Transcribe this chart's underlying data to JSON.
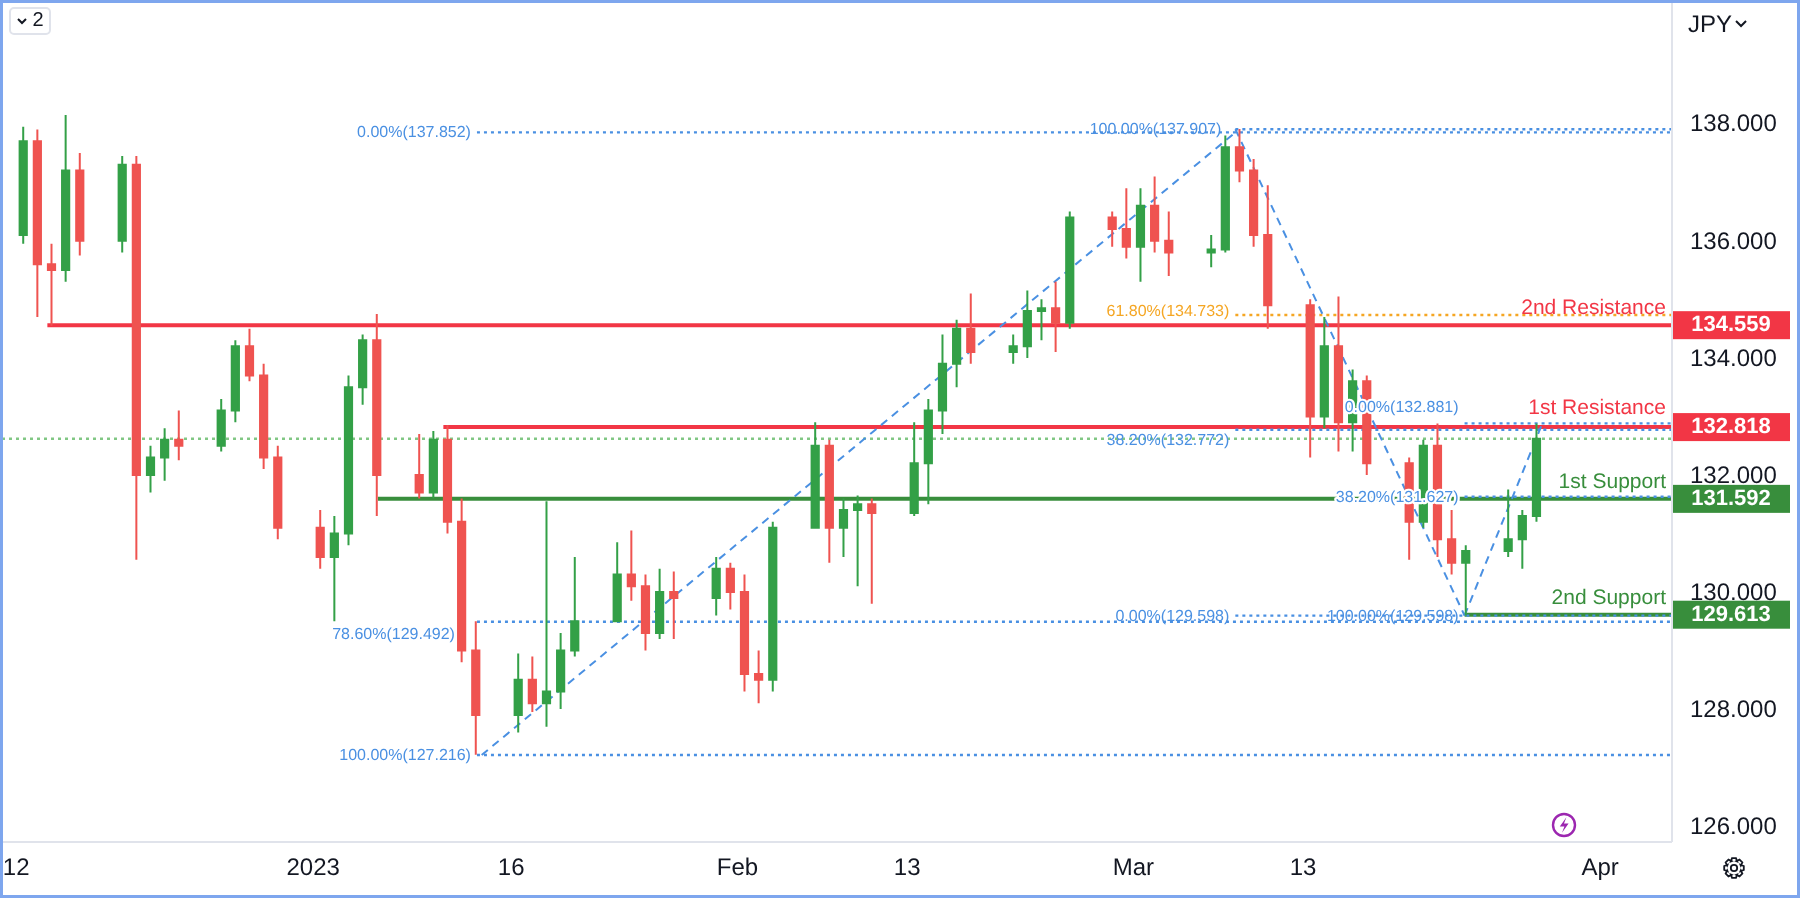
{
  "chart_data": {
    "type": "candlestick",
    "ylabel": "JPY",
    "x": [
      "2022-12-12T12:00",
      "2022-12-13T12:00",
      "2022-12-14T12:00",
      "2022-12-15T12:00",
      "2022-12-16T12:00",
      "2022-12-19T12:00",
      "2022-12-20T12:00",
      "2022-12-21T12:00",
      "2022-12-22T12:00",
      "2022-12-23T12:00",
      "2022-12-26T12:00",
      "2022-12-27T12:00",
      "2022-12-28T12:00",
      "2022-12-29T12:00",
      "2022-12-30T12:00",
      "2023-01-02T12:00",
      "2023-01-03T12:00",
      "2023-01-04T12:00",
      "2023-01-05T12:00",
      "2023-01-06T12:00",
      "2023-01-09T12:00",
      "2023-01-10T12:00",
      "2023-01-11T12:00",
      "2023-01-12T12:00",
      "2023-01-13T12:00",
      "2023-01-16T12:00",
      "2023-01-17T12:00",
      "2023-01-18T12:00",
      "2023-01-19T12:00",
      "2023-01-20T12:00",
      "2023-01-23T12:00",
      "2023-01-24T12:00",
      "2023-01-25T12:00",
      "2023-01-26T12:00",
      "2023-01-27T12:00",
      "2023-01-30T12:00",
      "2023-01-31T12:00",
      "2023-02-01T12:00",
      "2023-02-02T12:00",
      "2023-02-03T12:00",
      "2023-02-06T12:00",
      "2023-02-07T12:00",
      "2023-02-08T12:00",
      "2023-02-09T12:00",
      "2023-02-10T12:00",
      "2023-02-13T12:00",
      "2023-02-14T12:00",
      "2023-02-15T12:00",
      "2023-02-16T12:00",
      "2023-02-17T12:00",
      "2023-02-20T12:00",
      "2023-02-21T12:00",
      "2023-02-22T12:00",
      "2023-02-23T12:00",
      "2023-02-24T12:00",
      "2023-02-27T12:00",
      "2023-02-28T12:00",
      "2023-03-01T12:00",
      "2023-03-02T12:00",
      "2023-03-03T12:00",
      "2023-03-06T12:00",
      "2023-03-07T12:00",
      "2023-03-08T12:00",
      "2023-03-09T12:00",
      "2023-03-10T12:00",
      "2023-03-13T12:00",
      "2023-03-14T12:00",
      "2023-03-15T12:00",
      "2023-03-16T12:00",
      "2023-03-17T12:00",
      "2023-03-20T12:00",
      "2023-03-21T12:00",
      "2023-03-22T12:00",
      "2023-03-23T12:00",
      "2023-03-24T12:00",
      "2023-03-27T12:00",
      "2023-03-28T12:00",
      "2023-03-29T12:00"
    ],
    "ohlc": [
      [
        136.1,
        137.95,
        135.95,
        137.7
      ],
      [
        137.7,
        137.9,
        134.7,
        135.6
      ],
      [
        135.6,
        135.95,
        134.55,
        135.5
      ],
      [
        135.5,
        138.15,
        135.3,
        137.2
      ],
      [
        137.2,
        137.5,
        135.75,
        136.0
      ],
      [
        136.0,
        137.45,
        135.8,
        137.3
      ],
      [
        137.3,
        137.45,
        130.55,
        132.0
      ],
      [
        132.0,
        132.5,
        131.7,
        132.3
      ],
      [
        132.3,
        132.8,
        131.9,
        132.6
      ],
      [
        132.6,
        133.1,
        132.25,
        132.5
      ],
      [
        132.5,
        133.3,
        132.4,
        133.1
      ],
      [
        133.1,
        134.3,
        132.9,
        134.2
      ],
      [
        134.2,
        134.5,
        133.6,
        133.7
      ],
      [
        133.7,
        133.9,
        132.1,
        132.3
      ],
      [
        132.3,
        132.5,
        130.9,
        131.1
      ],
      [
        131.1,
        131.4,
        130.4,
        130.6
      ],
      [
        130.6,
        131.3,
        129.5,
        131.0
      ],
      [
        131.0,
        133.7,
        130.8,
        133.5
      ],
      [
        133.5,
        134.4,
        133.2,
        134.3
      ],
      [
        134.3,
        134.75,
        131.3,
        132.0
      ],
      [
        132.0,
        132.7,
        131.6,
        131.7
      ],
      [
        131.7,
        132.75,
        131.6,
        132.6
      ],
      [
        132.6,
        132.85,
        131.0,
        131.2
      ],
      [
        131.2,
        131.6,
        128.8,
        129.0
      ],
      [
        129.0,
        129.5,
        127.22,
        127.9
      ],
      [
        127.9,
        128.95,
        127.6,
        128.5
      ],
      [
        128.5,
        128.9,
        127.95,
        128.1
      ],
      [
        128.1,
        131.55,
        127.7,
        128.3
      ],
      [
        128.3,
        129.3,
        128.0,
        129.0
      ],
      [
        129.0,
        130.6,
        128.9,
        129.5
      ],
      [
        129.5,
        130.85,
        129.5,
        130.3
      ],
      [
        130.3,
        131.05,
        129.85,
        130.1
      ],
      [
        130.1,
        130.3,
        129.0,
        129.3
      ],
      [
        129.3,
        130.4,
        129.2,
        130.0
      ],
      [
        130.0,
        130.35,
        129.2,
        129.9
      ],
      [
        129.9,
        130.6,
        129.6,
        130.4
      ],
      [
        130.4,
        130.5,
        129.7,
        130.0
      ],
      [
        130.0,
        130.3,
        128.3,
        128.6
      ],
      [
        128.6,
        129.0,
        128.1,
        128.5
      ],
      [
        128.5,
        131.2,
        128.3,
        131.1
      ],
      [
        131.1,
        132.9,
        131.1,
        132.5
      ],
      [
        132.5,
        132.6,
        130.5,
        131.1
      ],
      [
        131.1,
        131.6,
        130.6,
        131.4
      ],
      [
        131.4,
        131.65,
        130.1,
        131.5
      ],
      [
        131.5,
        131.6,
        129.8,
        131.35
      ],
      [
        131.35,
        132.9,
        131.3,
        132.2
      ],
      [
        132.2,
        133.3,
        131.5,
        133.1
      ],
      [
        133.1,
        134.4,
        132.7,
        133.9
      ],
      [
        133.9,
        134.65,
        133.5,
        134.5
      ],
      [
        134.5,
        135.1,
        133.9,
        134.1
      ],
      [
        134.1,
        134.4,
        133.9,
        134.2
      ],
      [
        134.2,
        135.15,
        134.0,
        134.8
      ],
      [
        134.8,
        135.0,
        134.3,
        134.85
      ],
      [
        134.85,
        135.3,
        134.1,
        134.6
      ],
      [
        134.6,
        136.5,
        134.5,
        136.4
      ],
      [
        136.4,
        136.5,
        135.9,
        136.2
      ],
      [
        136.2,
        136.9,
        135.7,
        135.9
      ],
      [
        135.9,
        136.9,
        135.3,
        136.6
      ],
      [
        136.6,
        137.1,
        135.8,
        136.0
      ],
      [
        136.0,
        136.5,
        135.4,
        135.8
      ],
      [
        135.8,
        136.1,
        135.55,
        135.85
      ],
      [
        135.85,
        137.8,
        135.8,
        137.6
      ],
      [
        137.6,
        137.91,
        137.0,
        137.2
      ],
      [
        137.2,
        137.4,
        135.9,
        136.1
      ],
      [
        136.1,
        136.95,
        134.5,
        134.9
      ],
      [
        134.9,
        135.0,
        132.3,
        133.0
      ],
      [
        133.0,
        134.7,
        132.8,
        134.2
      ],
      [
        134.2,
        135.05,
        132.4,
        132.9
      ],
      [
        132.9,
        133.8,
        132.4,
        133.6
      ],
      [
        133.6,
        133.7,
        132.0,
        132.2
      ],
      [
        132.2,
        132.3,
        130.55,
        131.2
      ],
      [
        131.2,
        132.6,
        131.1,
        132.5
      ],
      [
        132.5,
        132.88,
        130.6,
        130.9
      ],
      [
        130.9,
        131.4,
        130.3,
        130.5
      ],
      [
        130.5,
        130.8,
        129.6,
        130.7
      ],
      [
        130.7,
        131.75,
        130.6,
        130.9
      ],
      [
        130.9,
        131.4,
        130.4,
        131.3
      ],
      [
        131.3,
        132.88,
        131.2,
        132.62
      ]
    ],
    "colors": [
      "#33a047",
      "#ef5350",
      "#ef5350",
      "#33a047",
      "#ef5350",
      "#33a047",
      "#ef5350",
      "#33a047",
      "#33a047",
      "#ef5350",
      "#33a047",
      "#33a047",
      "#ef5350",
      "#ef5350",
      "#ef5350",
      "#ef5350",
      "#33a047",
      "#33a047",
      "#33a047",
      "#ef5350",
      "#ef5350",
      "#33a047",
      "#ef5350",
      "#ef5350",
      "#ef5350",
      "#33a047",
      "#ef5350",
      "#33a047",
      "#33a047",
      "#33a047",
      "#33a047",
      "#ef5350",
      "#ef5350",
      "#33a047",
      "#ef5350",
      "#33a047",
      "#ef5350",
      "#ef5350",
      "#ef5350",
      "#33a047",
      "#33a047",
      "#ef5350",
      "#33a047",
      "#33a047",
      "#ef5350",
      "#33a047",
      "#33a047",
      "#33a047",
      "#33a047",
      "#ef5350",
      "#33a047",
      "#33a047",
      "#33a047",
      "#ef5350",
      "#33a047",
      "#ef5350",
      "#ef5350",
      "#33a047",
      "#ef5350",
      "#ef5350",
      "#33a047",
      "#33a047",
      "#ef5350",
      "#ef5350",
      "#ef5350",
      "#ef5350",
      "#33a047",
      "#ef5350",
      "#33a047",
      "#ef5350",
      "#ef5350",
      "#33a047",
      "#ef5350",
      "#ef5350",
      "#33a047",
      "#33a047",
      "#33a047",
      "#33a047"
    ],
    "xlim": [
      "2022-12-11T00:00",
      "2023-04-08T02:00"
    ],
    "xticks": [
      {
        "value": "2022-12-12",
        "label": "12"
      },
      {
        "value": "2023-01-02",
        "label": "2023"
      },
      {
        "value": "2023-01-16",
        "label": "16"
      },
      {
        "value": "2023-02-01",
        "label": "Feb"
      },
      {
        "value": "2023-02-13",
        "label": "13"
      },
      {
        "value": "2023-03-01",
        "label": "Mar"
      },
      {
        "value": "2023-03-13",
        "label": "13"
      },
      {
        "value": "2023-04-03",
        "label": "Apr"
      }
    ],
    "ylim": [
      125.73,
      140.08
    ],
    "yticks": [
      {
        "value": 126,
        "label": "126.000"
      },
      {
        "value": 128,
        "label": "128.000"
      },
      {
        "value": 130,
        "label": "130.000"
      },
      {
        "value": 132,
        "label": "132.000"
      },
      {
        "value": 134,
        "label": "134.000"
      },
      {
        "value": 136,
        "label": "136.000"
      },
      {
        "value": 138,
        "label": "138.000"
      }
    ],
    "series": [
      {
        "type": "line",
        "name": "2nd Resistance",
        "x": [
          "2022-12-14T05:00",
          "2023-04-08T02:00"
        ],
        "values": [
          134.559,
          134.559
        ],
        "color": "#f23645",
        "line_style": "solid",
        "value_labels": [
          null,
          "134.559"
        ]
      },
      {
        "type": "line",
        "name": "1st Resistance",
        "x": [
          "2023-01-11T05:00",
          "2023-04-08T02:00"
        ],
        "values": [
          132.818,
          132.818
        ],
        "color": "#f23645",
        "line_style": "solid",
        "value_labels": [
          null,
          "132.818"
        ]
      },
      {
        "type": "line",
        "name": "1st Support",
        "x": [
          "2023-01-06T14:00",
          "2023-04-08T02:00"
        ],
        "values": [
          131.592,
          131.592
        ],
        "color": "#388e3c",
        "line_style": "solid",
        "value_labels": [
          null,
          "131.592"
        ]
      },
      {
        "type": "line",
        "name": "2nd Support",
        "x": [
          "2023-03-24T10:00",
          "2023-04-08T02:00"
        ],
        "values": [
          129.613,
          129.613
        ],
        "color": "#388e3c",
        "line_style": "solid",
        "value_labels": [
          null,
          "129.613"
        ]
      },
      {
        "type": "line",
        "name": "0.00%(137.852)",
        "x": [
          "2023-01-13T14:00",
          "2023-04-08T02:00"
        ],
        "values": [
          137.852,
          137.852
        ],
        "color": "#4a90e2",
        "line_style": "dotted"
      },
      {
        "type": "line",
        "name": "78.60%(129.492)",
        "x": [
          "2023-01-13T14:00",
          "2023-04-08T02:00"
        ],
        "values": [
          129.492,
          129.492
        ],
        "color": "#4a90e2",
        "line_style": "dotted"
      },
      {
        "type": "line",
        "name": "100.00%(127.216)",
        "x": [
          "2023-01-13T14:00",
          "2023-04-08T02:00"
        ],
        "values": [
          127.216,
          127.216
        ],
        "color": "#4a90e2",
        "line_style": "dotted"
      },
      {
        "type": "line",
        "name": "100.00%(137.907)",
        "x": [
          "2023-03-08T05:00",
          "2023-04-08T02:00"
        ],
        "values": [
          137.907,
          137.907
        ],
        "color": "#4a90e2",
        "line_style": "dotted"
      },
      {
        "type": "line",
        "name": "61.80%(134.733)",
        "x": [
          "2023-03-08T05:00",
          "2023-04-08T02:00"
        ],
        "values": [
          134.733,
          134.733
        ],
        "color": "#f5a623",
        "line_style": "dotted"
      },
      {
        "type": "line",
        "name": "38.20%(132.772)",
        "x": [
          "2023-03-08T05:00",
          "2023-04-08T02:00"
        ],
        "values": [
          132.772,
          132.772
        ],
        "color": "#4a90e2",
        "line_style": "dotted"
      },
      {
        "type": "line",
        "name": "0.00%(129.598)",
        "x": [
          "2023-03-08T05:00",
          "2023-04-08T02:00"
        ],
        "values": [
          129.598,
          129.598
        ],
        "color": "#4a90e2",
        "line_style": "dotted"
      },
      {
        "type": "line",
        "name": "0.00%(132.881)",
        "x": [
          "2023-03-24T10:00",
          "2023-04-08T02:00"
        ],
        "values": [
          132.881,
          132.881
        ],
        "color": "#4a90e2",
        "line_style": "dotted"
      },
      {
        "type": "line",
        "name": "38.20%(131.627)",
        "x": [
          "2023-03-24T10:00",
          "2023-04-08T02:00"
        ],
        "values": [
          131.627,
          131.627
        ],
        "color": "#4a90e2",
        "line_style": "dotted"
      },
      {
        "type": "line",
        "x": [
          "2023-01-13T22:00",
          "2023-03-08T05:00"
        ],
        "values": [
          127.216,
          137.852
        ],
        "color": "#4a90e2",
        "line_style": "dashed"
      },
      {
        "type": "line",
        "x": [
          "2023-03-08T05:00",
          "2023-03-24T10:00"
        ],
        "values": [
          137.907,
          129.598
        ],
        "color": "#4a90e2",
        "line_style": "dashed"
      },
      {
        "type": "line",
        "x": [
          "2023-03-24T10:00",
          "2023-03-29T22:00"
        ],
        "values": [
          129.598,
          132.881
        ],
        "color": "#4a90e2",
        "line_style": "dashed"
      }
    ],
    "ref_lines": [
      {
        "axis": "y",
        "value": 132.62,
        "color": "#81c784",
        "line_style": "dotted"
      }
    ],
    "annotations": [
      "2",
      {
        "text": "100.00%(129.598)",
        "x": "2023-03-24T10:00",
        "y": 129.598
      }
    ]
  }
}
